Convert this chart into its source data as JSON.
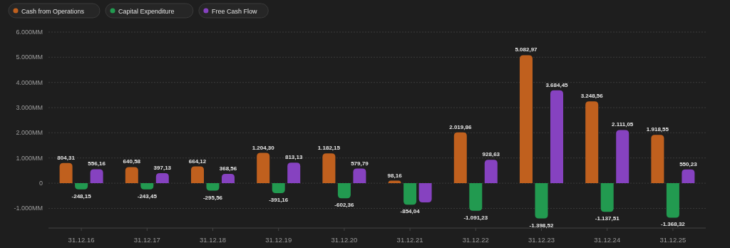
{
  "chart_data": {
    "type": "bar",
    "categories": [
      "31.12.16",
      "31.12.17",
      "31.12.18",
      "31.12.19",
      "31.12.20",
      "31.12.21",
      "31.12.22",
      "31.12.23",
      "31.12.24",
      "31.12.25"
    ],
    "series": [
      {
        "name": "Cash from Operations",
        "color": "#c0601e",
        "values": [
          804.31,
          640.58,
          664.12,
          1204.3,
          1182.15,
          98.16,
          2019.86,
          5082.97,
          3248.56,
          1918.55
        ],
        "value_labels": [
          "804,31",
          "640,58",
          "664,12",
          "1.204,30",
          "1.182,15",
          "98,16",
          "2.019,86",
          "5.082,97",
          "3.248,56",
          "1.918,55"
        ]
      },
      {
        "name": "Capital Expenditure",
        "color": "#229a50",
        "values": [
          -248.15,
          -243.45,
          -295.56,
          -391.16,
          -602.36,
          -854.04,
          -1091.23,
          -1398.52,
          -1137.51,
          -1368.32
        ],
        "value_labels": [
          "-248,15",
          "-243,45",
          "-295,56",
          "-391,16",
          "-602,36",
          "-854,04",
          "-1.091,23",
          "-1.398,52",
          "-1.137,51",
          "-1.368,32"
        ]
      },
      {
        "name": "Free Cash Flow",
        "color": "#8642c0",
        "values": [
          556.16,
          397.13,
          368.56,
          813.13,
          579.79,
          -760,
          928.63,
          3684.45,
          2111.05,
          550.23
        ],
        "value_labels": [
          "556,16",
          "397,13",
          "368,56",
          "813,13",
          "579,79",
          null,
          "928,63",
          "3.684,45",
          "2.111,05",
          "550,23"
        ]
      }
    ],
    "ylim": [
      -1780,
      6000
    ],
    "yticks": [
      {
        "value": -1000,
        "label": "-1.000MM"
      },
      0,
      {
        "value": 1000,
        "label": "1.000MM"
      },
      {
        "value": 2000,
        "label": "2.000MM"
      },
      {
        "value": 3000,
        "label": "3.000MM"
      },
      {
        "value": 4000,
        "label": "4.000MM"
      },
      {
        "value": 5000,
        "label": "5.000MM"
      },
      {
        "value": 6000,
        "label": "6.000MM"
      }
    ],
    "grid": "y",
    "legend": "top left"
  }
}
